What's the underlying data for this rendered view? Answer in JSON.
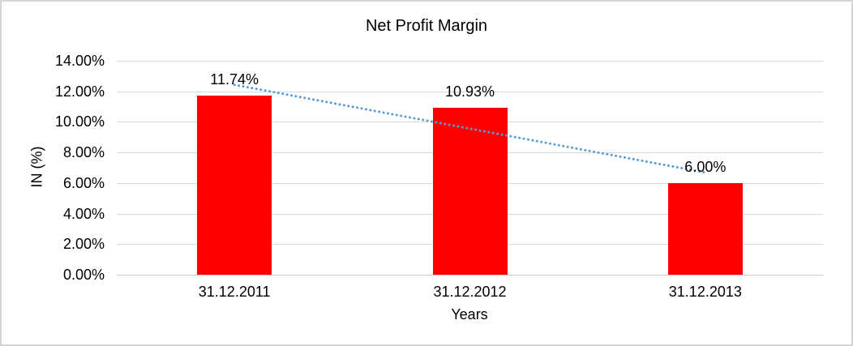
{
  "window": {
    "background": "#ffffff",
    "border_color": "#d5d5d5"
  },
  "chart_data": {
    "type": "bar",
    "title": "Net Profit Margin",
    "categories": [
      "31.12.2011",
      "31.12.2012",
      "31.12.2013"
    ],
    "values": [
      11.74,
      10.93,
      6.0
    ],
    "value_labels": [
      "11.74%",
      "10.93%",
      "6.00%"
    ],
    "xlabel": "Years",
    "ylabel": "IN (%)",
    "ylim": [
      0,
      14
    ],
    "ytick_step": 2,
    "ytick_labels": [
      "0.00%",
      "2.00%",
      "4.00%",
      "6.00%",
      "8.00%",
      "10.00%",
      "12.00%",
      "14.00%"
    ],
    "grid": true,
    "legend": "none",
    "bar_color": "#ff0000",
    "gridline_color": "#d9d9d9",
    "axis_line_color": "#c9c9c9",
    "text_color": "#000000",
    "trendline": {
      "type": "linear",
      "style": "dotted",
      "color": "#5b9bd5"
    }
  }
}
